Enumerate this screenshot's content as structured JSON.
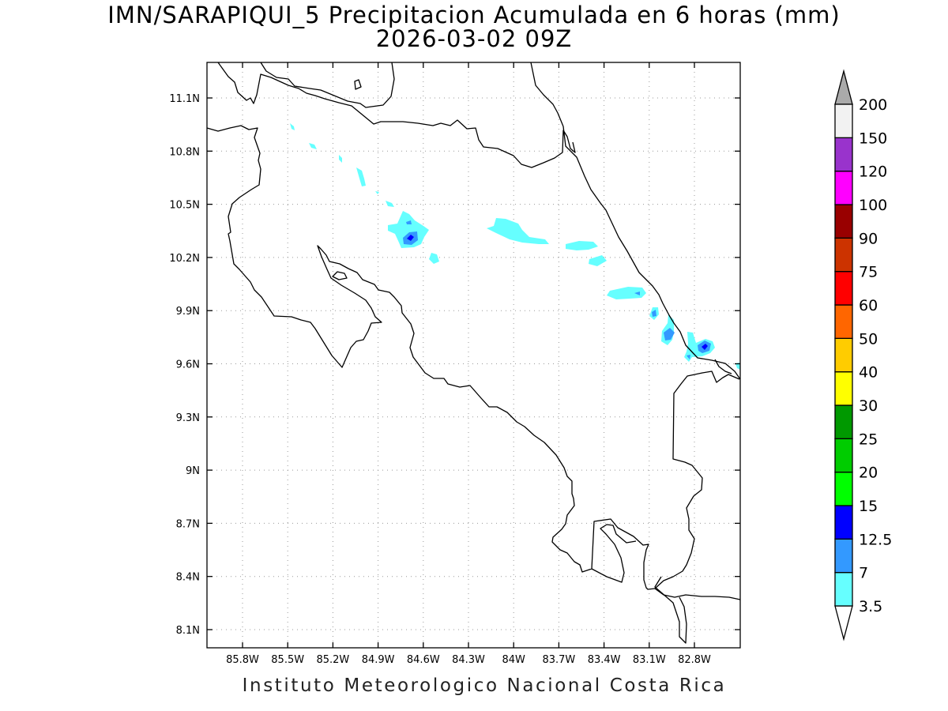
{
  "title": {
    "line1": "IMN/SARAPIQUI_5 Precipitacion Acumulada en 6 horas (mm)",
    "line2": "2026-03-02 09Z"
  },
  "footer": "Instituto Meteorologico Nacional Costa Rica",
  "map": {
    "lon_ticks": [
      "85.8W",
      "85.5W",
      "85.2W",
      "84.9W",
      "84.6W",
      "84.3W",
      "84W",
      "83.7W",
      "83.4W",
      "83.1W",
      "82.8W"
    ],
    "lat_ticks": [
      "11.1N",
      "10.8N",
      "10.5N",
      "10.2N",
      "9.9N",
      "9.6N",
      "9.3N",
      "9N",
      "8.7N",
      "8.4N",
      "8.1N"
    ],
    "grid": true,
    "coastline_color": "#000000",
    "precip_colors": {
      "light": "#66ffff",
      "medium": "#3399ff",
      "heavy": "#0000ff"
    }
  },
  "colorbar": {
    "labels": [
      "3.5",
      "7",
      "12.5",
      "15",
      "20",
      "25",
      "30",
      "40",
      "50",
      "60",
      "75",
      "90",
      "100",
      "120",
      "150",
      "200"
    ],
    "colors": [
      "#66ffff",
      "#3399ff",
      "#0000ff",
      "#00ff00",
      "#00cc00",
      "#009900",
      "#ffff00",
      "#ffcc00",
      "#ff6600",
      "#ff0000",
      "#cc3300",
      "#990000",
      "#ff00ff",
      "#9933cc",
      "#f2f2f2",
      "#aaaaaa"
    ]
  }
}
